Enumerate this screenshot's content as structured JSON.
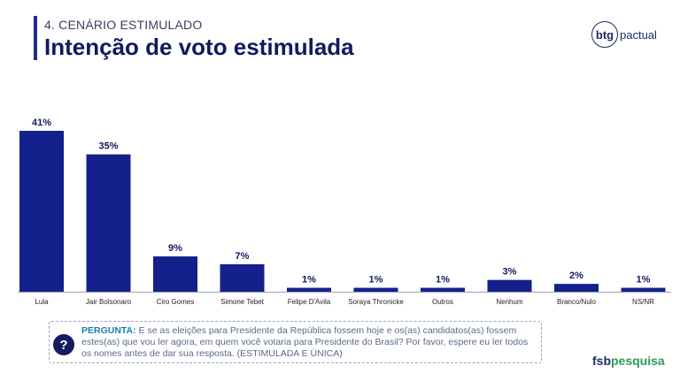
{
  "header": {
    "subtitle": "4. CENÁRIO ESTIMULADO",
    "title": "Intenção de voto estimulada"
  },
  "logo_top": {
    "mark": "btg",
    "word": "pactual"
  },
  "logo_bottom": {
    "part1": "fsb",
    "part2": "pesquisa"
  },
  "question": {
    "icon": "?",
    "label": "PERGUNTA:",
    "text": " E se as eleições para Presidente da República fossem hoje e os(as) candidatos(as) fossem estes(as) que vou ler agora, em quem você votaria para Presidente do Brasil? Por favor, espere eu ler todos os nomes antes de dar sua resposta. (ESTIMULADA E ÚNICA)"
  },
  "colors": {
    "bar": "#14208c",
    "title": "#121a5e"
  },
  "chart_data": {
    "type": "bar",
    "categories": [
      "Lula",
      "Jair Bolsonaro",
      "Ciro Gomes",
      "Simone Tebet",
      "Felipe D'Avila",
      "Soraya Thronicke",
      "Outros",
      "Nenhum",
      "Branco/Nulo",
      "NS/NR"
    ],
    "values": [
      41,
      35,
      9,
      7,
      1,
      1,
      1,
      3,
      2,
      1
    ],
    "labels": [
      "41%",
      "35%",
      "9%",
      "7%",
      "1%",
      "1%",
      "1%",
      "3%",
      "2%",
      "1%"
    ],
    "unit": "%",
    "ylim": [
      0,
      41
    ],
    "grid": false,
    "legend": "none"
  }
}
